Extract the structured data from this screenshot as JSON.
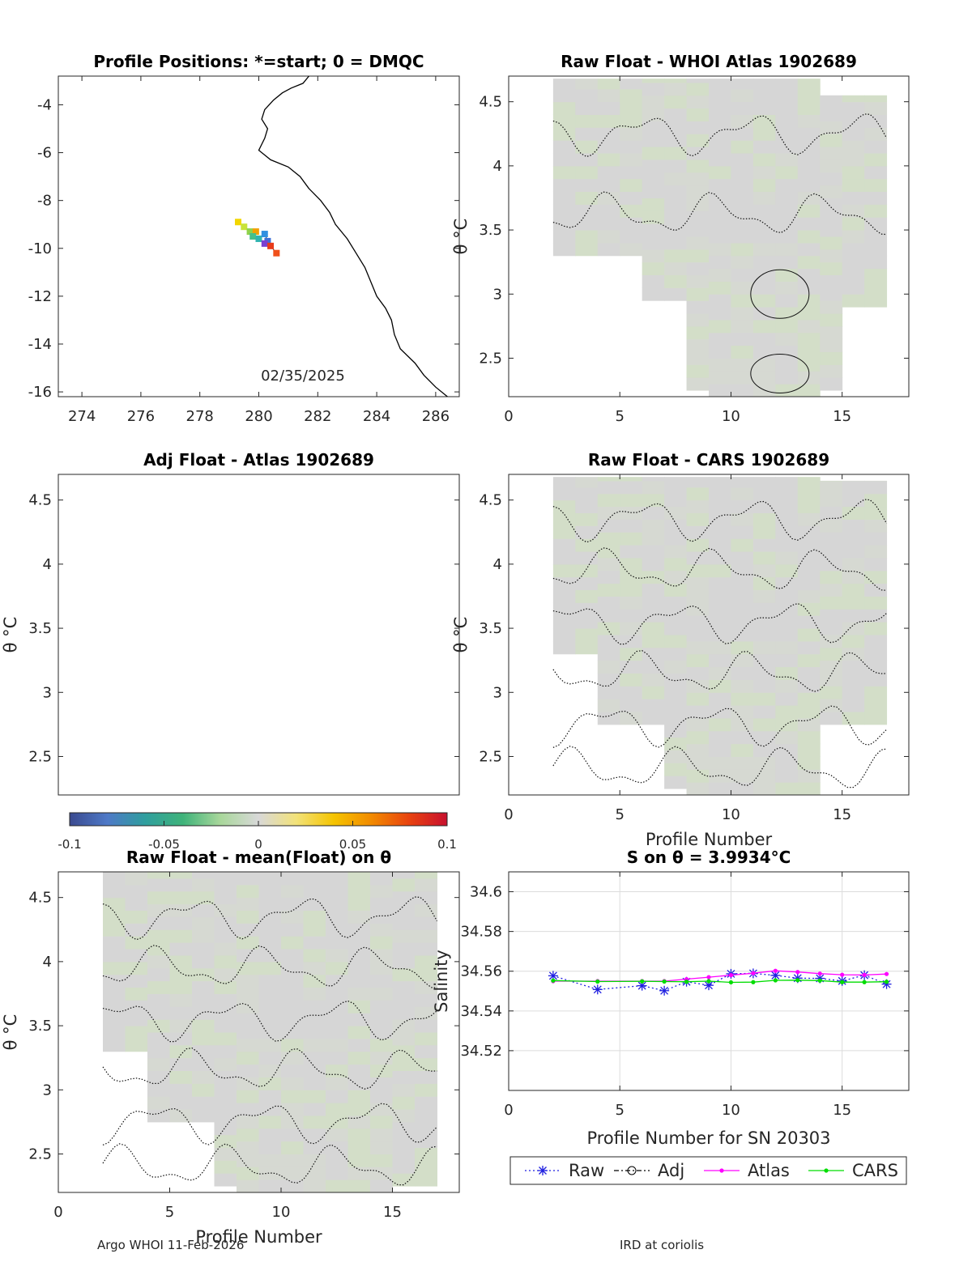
{
  "footer": {
    "left": "Argo WHOI 11-Feb-2026",
    "right": "IRD at coriolis"
  },
  "colorbar": {
    "ticks": [
      "-0.1",
      "-0.05",
      "0",
      "0.05",
      "0.1"
    ],
    "range": [
      -0.1,
      0.1
    ],
    "stops": [
      "#3b4a8f",
      "#4e79c7",
      "#2f9e9e",
      "#3fb37a",
      "#a9d79b",
      "#d8d8d8",
      "#f2e27a",
      "#f5c400",
      "#f28a00",
      "#e8420f",
      "#c8102e"
    ]
  },
  "chart_data": [
    {
      "id": "positions",
      "type": "scatter",
      "title": "Profile Positions: *=start; 0 = DMQC",
      "xlim": [
        273.2,
        286.8
      ],
      "ylim": [
        -16.2,
        -2.8
      ],
      "xticks": [
        "274",
        "276",
        "278",
        "280",
        "282",
        "284",
        "286"
      ],
      "yticks": [
        "-4",
        "-6",
        "-8",
        "-10",
        "-12",
        "-14",
        "-16"
      ],
      "date_label": "02/35/2025",
      "coast": [
        [
          281.7,
          -2.8
        ],
        [
          281.5,
          -3.1
        ],
        [
          281.1,
          -3.3
        ],
        [
          280.8,
          -3.5
        ],
        [
          280.5,
          -3.8
        ],
        [
          280.2,
          -4.2
        ],
        [
          280.1,
          -4.6
        ],
        [
          280.3,
          -5.0
        ],
        [
          280.2,
          -5.4
        ],
        [
          280.0,
          -5.9
        ],
        [
          280.4,
          -6.3
        ],
        [
          281.0,
          -6.6
        ],
        [
          281.4,
          -7.0
        ],
        [
          281.7,
          -7.5
        ],
        [
          282.1,
          -8.0
        ],
        [
          282.4,
          -8.5
        ],
        [
          282.6,
          -9.0
        ],
        [
          283.0,
          -9.6
        ],
        [
          283.3,
          -10.2
        ],
        [
          283.6,
          -10.8
        ],
        [
          283.8,
          -11.4
        ],
        [
          284.0,
          -12.0
        ],
        [
          284.3,
          -12.5
        ],
        [
          284.5,
          -13.0
        ],
        [
          284.6,
          -13.6
        ],
        [
          284.8,
          -14.2
        ],
        [
          285.3,
          -14.8
        ],
        [
          285.6,
          -15.3
        ],
        [
          286.0,
          -15.8
        ],
        [
          286.4,
          -16.2
        ]
      ],
      "track": [
        {
          "lon": 279.3,
          "lat": -8.9,
          "c": "#f2d600"
        },
        {
          "lon": 279.5,
          "lat": -9.1,
          "c": "#c9e33a"
        },
        {
          "lon": 279.7,
          "lat": -9.3,
          "c": "#8fd24a"
        },
        {
          "lon": 279.9,
          "lat": -9.3,
          "c": "#f2a000"
        },
        {
          "lon": 279.8,
          "lat": -9.5,
          "c": "#45c08a"
        },
        {
          "lon": 280.0,
          "lat": -9.6,
          "c": "#2fb3b0"
        },
        {
          "lon": 280.2,
          "lat": -9.4,
          "c": "#2f8fe0"
        },
        {
          "lon": 280.3,
          "lat": -9.7,
          "c": "#3a6fd8"
        },
        {
          "lon": 280.2,
          "lat": -9.8,
          "c": "#7a3fd0"
        },
        {
          "lon": 280.4,
          "lat": -9.9,
          "c": "#e83a1a"
        },
        {
          "lon": 280.6,
          "lat": -10.2,
          "c": "#f0501a"
        }
      ]
    },
    {
      "id": "raw-whoi",
      "type": "heatmap",
      "title": "Raw Float - WHOI Atlas  1902689",
      "xlim": [
        0,
        18
      ],
      "ylim": [
        2.2,
        4.7
      ],
      "xticks": [
        "0",
        "5",
        "10",
        "15"
      ],
      "yticks": [
        "2.5",
        "3",
        "3.5",
        "4",
        "4.5"
      ],
      "xlabel": "",
      "ylabel": "θ °C",
      "coverage": [
        [
          2,
          3.3,
          4.68
        ],
        [
          3,
          3.3,
          4.68
        ],
        [
          4,
          3.3,
          4.68
        ],
        [
          5,
          3.3,
          4.68
        ],
        [
          6,
          2.95,
          4.68
        ],
        [
          7,
          2.95,
          4.68
        ],
        [
          8,
          2.25,
          4.68
        ],
        [
          9,
          2.2,
          4.68
        ],
        [
          10,
          2.2,
          4.68
        ],
        [
          11,
          2.2,
          4.68
        ],
        [
          12,
          2.2,
          4.68
        ],
        [
          13,
          2.2,
          4.68
        ],
        [
          14,
          2.25,
          4.55
        ],
        [
          15,
          2.9,
          4.55
        ],
        [
          16,
          2.9,
          4.55
        ]
      ]
    },
    {
      "id": "adj-atlas",
      "type": "heatmap",
      "title": "Adj Float - Atlas  1902689",
      "xlim": [
        0,
        18
      ],
      "ylim": [
        2.2,
        4.7
      ],
      "xticks": [],
      "yticks": [
        "2.5",
        "3",
        "3.5",
        "4",
        "4.5"
      ],
      "xlabel": "",
      "ylabel": "θ °C",
      "coverage": []
    },
    {
      "id": "raw-cars",
      "type": "heatmap",
      "title": "Raw Float - CARS  1902689",
      "xlim": [
        0,
        18
      ],
      "ylim": [
        2.2,
        4.7
      ],
      "xticks": [
        "0",
        "5",
        "10",
        "15"
      ],
      "yticks": [
        "2.5",
        "3",
        "3.5",
        "4",
        "4.5"
      ],
      "xlabel": "Profile Number",
      "ylabel": "θ °C",
      "coverage": [
        [
          2,
          3.3,
          4.68
        ],
        [
          3,
          3.3,
          4.68
        ],
        [
          4,
          2.75,
          4.68
        ],
        [
          5,
          2.75,
          4.68
        ],
        [
          6,
          2.75,
          4.68
        ],
        [
          7,
          2.25,
          4.68
        ],
        [
          8,
          2.2,
          4.68
        ],
        [
          9,
          2.2,
          4.68
        ],
        [
          10,
          2.2,
          4.68
        ],
        [
          11,
          2.2,
          4.68
        ],
        [
          12,
          2.2,
          4.68
        ],
        [
          13,
          2.2,
          4.68
        ],
        [
          14,
          2.75,
          4.65
        ],
        [
          15,
          2.75,
          4.65
        ],
        [
          16,
          2.75,
          4.65
        ]
      ]
    },
    {
      "id": "raw-mean",
      "type": "heatmap",
      "title": "Raw Float - mean(Float) on θ",
      "xlim": [
        0,
        18
      ],
      "ylim": [
        2.2,
        4.7
      ],
      "xticks": [
        "0",
        "5",
        "10",
        "15"
      ],
      "yticks": [
        "2.5",
        "3",
        "3.5",
        "4",
        "4.5"
      ],
      "xlabel": "Profile Number",
      "ylabel": "θ °C",
      "coverage": [
        [
          2,
          3.3,
          4.7
        ],
        [
          3,
          3.3,
          4.7
        ],
        [
          4,
          2.75,
          4.7
        ],
        [
          5,
          2.75,
          4.7
        ],
        [
          6,
          2.75,
          4.7
        ],
        [
          7,
          2.25,
          4.7
        ],
        [
          8,
          2.2,
          4.7
        ],
        [
          9,
          2.2,
          4.7
        ],
        [
          10,
          2.2,
          4.7
        ],
        [
          11,
          2.2,
          4.7
        ],
        [
          12,
          2.2,
          4.7
        ],
        [
          13,
          2.2,
          4.7
        ],
        [
          14,
          2.2,
          4.7
        ],
        [
          15,
          2.25,
          4.7
        ],
        [
          16,
          2.25,
          4.7
        ]
      ]
    },
    {
      "id": "salinity",
      "type": "line",
      "title": "S on θ = 3.9934°C",
      "xlabel": "Profile Number for SN 20303",
      "ylabel": "Salinity",
      "xlim": [
        0,
        18
      ],
      "ylim": [
        34.5,
        34.61
      ],
      "xticks": [
        "0",
        "5",
        "10",
        "15"
      ],
      "yticks": [
        "34.52",
        "34.54",
        "34.56",
        "34.58",
        "34.6"
      ],
      "grid": true,
      "legend": "bottom",
      "series": [
        {
          "name": "Raw",
          "color": "#1f1fe0",
          "x": [
            2,
            4,
            6,
            7,
            8,
            9,
            10,
            11,
            12,
            13,
            14,
            15,
            16,
            17
          ],
          "y": [
            34.5577,
            34.5508,
            34.5527,
            34.5502,
            34.5547,
            34.5529,
            34.5587,
            34.5589,
            34.5579,
            34.5565,
            34.5564,
            34.5551,
            34.558,
            34.5535
          ]
        },
        {
          "name": "Adj",
          "color": "#000000",
          "x": [],
          "y": []
        },
        {
          "name": "Atlas",
          "color": "#ff00ff",
          "x": [
            2,
            4,
            6,
            7,
            8,
            9,
            10,
            11,
            12,
            13,
            14,
            15,
            16,
            17
          ],
          "y": [
            34.555,
            34.555,
            34.555,
            34.555,
            34.556,
            34.557,
            34.558,
            34.559,
            34.5602,
            34.5596,
            34.5588,
            34.5582,
            34.5581,
            34.5586
          ]
        },
        {
          "name": "CARS",
          "color": "#00dd00",
          "x": [
            2,
            4,
            6,
            7,
            8,
            9,
            10,
            11,
            12,
            13,
            14,
            15,
            16,
            17
          ],
          "y": [
            34.5553,
            34.5548,
            34.5549,
            34.5548,
            34.5547,
            34.555,
            34.5544,
            34.5545,
            34.5554,
            34.5555,
            34.5553,
            34.5545,
            34.5545,
            34.5547
          ]
        }
      ]
    }
  ]
}
